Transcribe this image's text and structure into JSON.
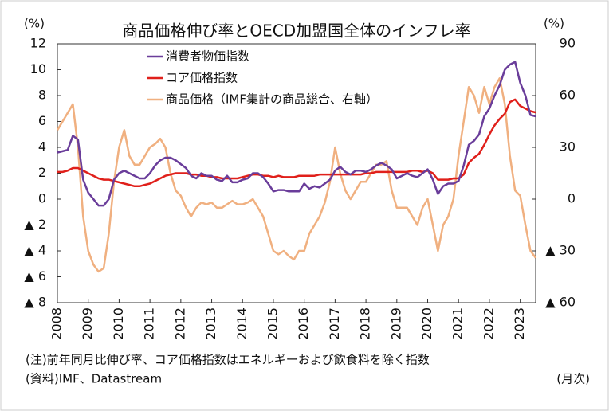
{
  "chart_data": {
    "type": "line",
    "title": "商品価格伸び率とOECD加盟国全体のインフレ率",
    "y_label": "(%)",
    "y2_label": "(%)",
    "notes": [
      "(注)前年同月比伸び率、コア価格指数はエネルギーおよび飲食料を除く指数",
      "(資料)IMF、Datastream"
    ],
    "x_unit": "(月次)",
    "categories": [
      "2008",
      null,
      null,
      null,
      null,
      null,
      "2009",
      null,
      null,
      null,
      null,
      null,
      "2010",
      null,
      null,
      null,
      null,
      null,
      "2011",
      null,
      null,
      null,
      null,
      null,
      "2012",
      null,
      null,
      null,
      null,
      null,
      "2013",
      null,
      null,
      null,
      null,
      null,
      "2014",
      null,
      null,
      null,
      null,
      null,
      "2015",
      null,
      null,
      null,
      null,
      null,
      "2016",
      null,
      null,
      null,
      null,
      null,
      "2017",
      null,
      null,
      null,
      null,
      null,
      "2018",
      null,
      null,
      null,
      null,
      null,
      "2019",
      null,
      null,
      null,
      null,
      null,
      "2020",
      null,
      null,
      null,
      null,
      null,
      "2021",
      null,
      null,
      null,
      null,
      null,
      "2022",
      null,
      null,
      null,
      null,
      null,
      "2023",
      null,
      null,
      null
    ],
    "series": [
      {
        "name": "消費者物価指数",
        "color": "#6a3d9a",
        "values": [
          3.6,
          3.7,
          3.8,
          4.9,
          4.6,
          1.5,
          0.5,
          0,
          -0.5,
          -0.5,
          0,
          1.5,
          2.0,
          2.2,
          2.0,
          1.8,
          1.6,
          1.6,
          2.0,
          2.6,
          3.0,
          3.2,
          3.2,
          3.0,
          2.7,
          2.4,
          1.8,
          1.6,
          2.0,
          1.8,
          1.8,
          1.5,
          1.4,
          1.8,
          1.3,
          1.3,
          1.5,
          1.6,
          2.0,
          2.0,
          1.7,
          1.2,
          0.6,
          0.7,
          0.7,
          0.6,
          0.6,
          0.6,
          1.2,
          0.8,
          1.0,
          0.9,
          1.2,
          1.5,
          2.2,
          2.5,
          2.1,
          1.9,
          2.2,
          2.2,
          2.1,
          2.3,
          2.6,
          2.8,
          2.6,
          2.3,
          1.6,
          1.8,
          2.0,
          1.8,
          1.7,
          2.0,
          2.3,
          1.5,
          0.4,
          1.0,
          1.2,
          1.2,
          1.4,
          2.6,
          4.2,
          4.5,
          5.0,
          6.4,
          7.0,
          8.0,
          8.8,
          10.0,
          10.4,
          10.6,
          9.0,
          8.0,
          6.5,
          6.4
        ]
      },
      {
        "name": "コア価格指数",
        "color": "#e0201b",
        "values": [
          2.1,
          2.1,
          2.2,
          2.4,
          2.4,
          2.2,
          2.0,
          1.8,
          1.6,
          1.5,
          1.5,
          1.4,
          1.3,
          1.2,
          1.1,
          1.0,
          1.0,
          1.1,
          1.2,
          1.4,
          1.6,
          1.8,
          1.9,
          2.0,
          2.0,
          2.0,
          1.9,
          1.9,
          1.8,
          1.8,
          1.7,
          1.7,
          1.6,
          1.6,
          1.6,
          1.6,
          1.7,
          1.8,
          1.9,
          1.9,
          1.8,
          1.8,
          1.7,
          1.8,
          1.7,
          1.7,
          1.7,
          1.8,
          1.8,
          1.8,
          1.8,
          1.9,
          1.9,
          1.9,
          1.9,
          1.9,
          1.9,
          1.9,
          1.9,
          1.9,
          2.0,
          2.0,
          2.1,
          2.1,
          2.1,
          2.1,
          2.1,
          2.1,
          2.1,
          2.2,
          2.2,
          2.1,
          2.2,
          2.0,
          1.5,
          1.5,
          1.5,
          1.6,
          1.6,
          1.9,
          2.8,
          3.2,
          3.5,
          4.2,
          5.0,
          5.7,
          6.2,
          6.6,
          7.5,
          7.7,
          7.2,
          7.0,
          6.8,
          6.7
        ]
      },
      {
        "name": "商品価格（IMF集計の商品総合、右軸）",
        "color": "#f0b080",
        "axis": "y2",
        "values": [
          40,
          45,
          50,
          55,
          30,
          -10,
          -30,
          -38,
          -42,
          -40,
          -20,
          10,
          30,
          40,
          25,
          20,
          20,
          25,
          30,
          32,
          35,
          30,
          15,
          5,
          2,
          -5,
          -10,
          -5,
          -2,
          -3,
          -2,
          -5,
          -5,
          -3,
          -1,
          -3,
          -3,
          -2,
          0,
          -5,
          -10,
          -20,
          -30,
          -32,
          -30,
          -33,
          -35,
          -30,
          -30,
          -20,
          -15,
          -10,
          -2,
          10,
          30,
          15,
          5,
          0,
          5,
          10,
          10,
          15,
          20,
          20,
          22,
          5,
          -5,
          -5,
          -5,
          -10,
          -15,
          -5,
          0,
          -15,
          -30,
          -15,
          -10,
          0,
          25,
          45,
          65,
          60,
          50,
          65,
          55,
          65,
          70,
          55,
          25,
          5,
          2,
          -15,
          -30,
          -34
        ]
      }
    ],
    "ylim": [
      -8,
      12
    ],
    "yticks": [
      {
        "value": -8,
        "label": "▲ 8"
      },
      {
        "value": -6,
        "label": "▲ 6"
      },
      {
        "value": -4,
        "label": "▲ 4"
      },
      {
        "value": -2,
        "label": "▲ 2"
      },
      0,
      2,
      4,
      6,
      8,
      10,
      12
    ],
    "y2lim": [
      -60,
      90
    ],
    "y2ticks": [
      {
        "value": -60,
        "label": "▲ 60"
      },
      {
        "value": -30,
        "label": "▲ 30"
      },
      0,
      30,
      60,
      90
    ],
    "grid": false
  }
}
